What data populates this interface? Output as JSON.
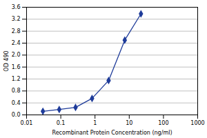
{
  "chart_data": {
    "type": "line",
    "x_label": "Recombinant Protein Concentration (ng/ml)",
    "y_label": "OD 490",
    "x": [
      0.03,
      0.09,
      0.27,
      0.82,
      2.5,
      7.4,
      22
    ],
    "values": [
      0.12,
      0.18,
      0.25,
      0.55,
      1.15,
      2.5,
      3.38
    ],
    "color": "#1f3c9a",
    "marker": "diamond",
    "log": "x",
    "xlim": [
      0.01,
      1000
    ],
    "xticks": [
      0.01,
      0.1,
      1,
      10,
      100,
      1000
    ],
    "ylim": [
      0,
      3.6
    ],
    "yticks": [
      {
        "value": 0,
        "label": "0.0"
      },
      0.4,
      0.8,
      1.2,
      1.6,
      {
        "value": 2,
        "label": "2.0"
      },
      2.4,
      2.8,
      3.2,
      3.6
    ],
    "grid": true
  }
}
